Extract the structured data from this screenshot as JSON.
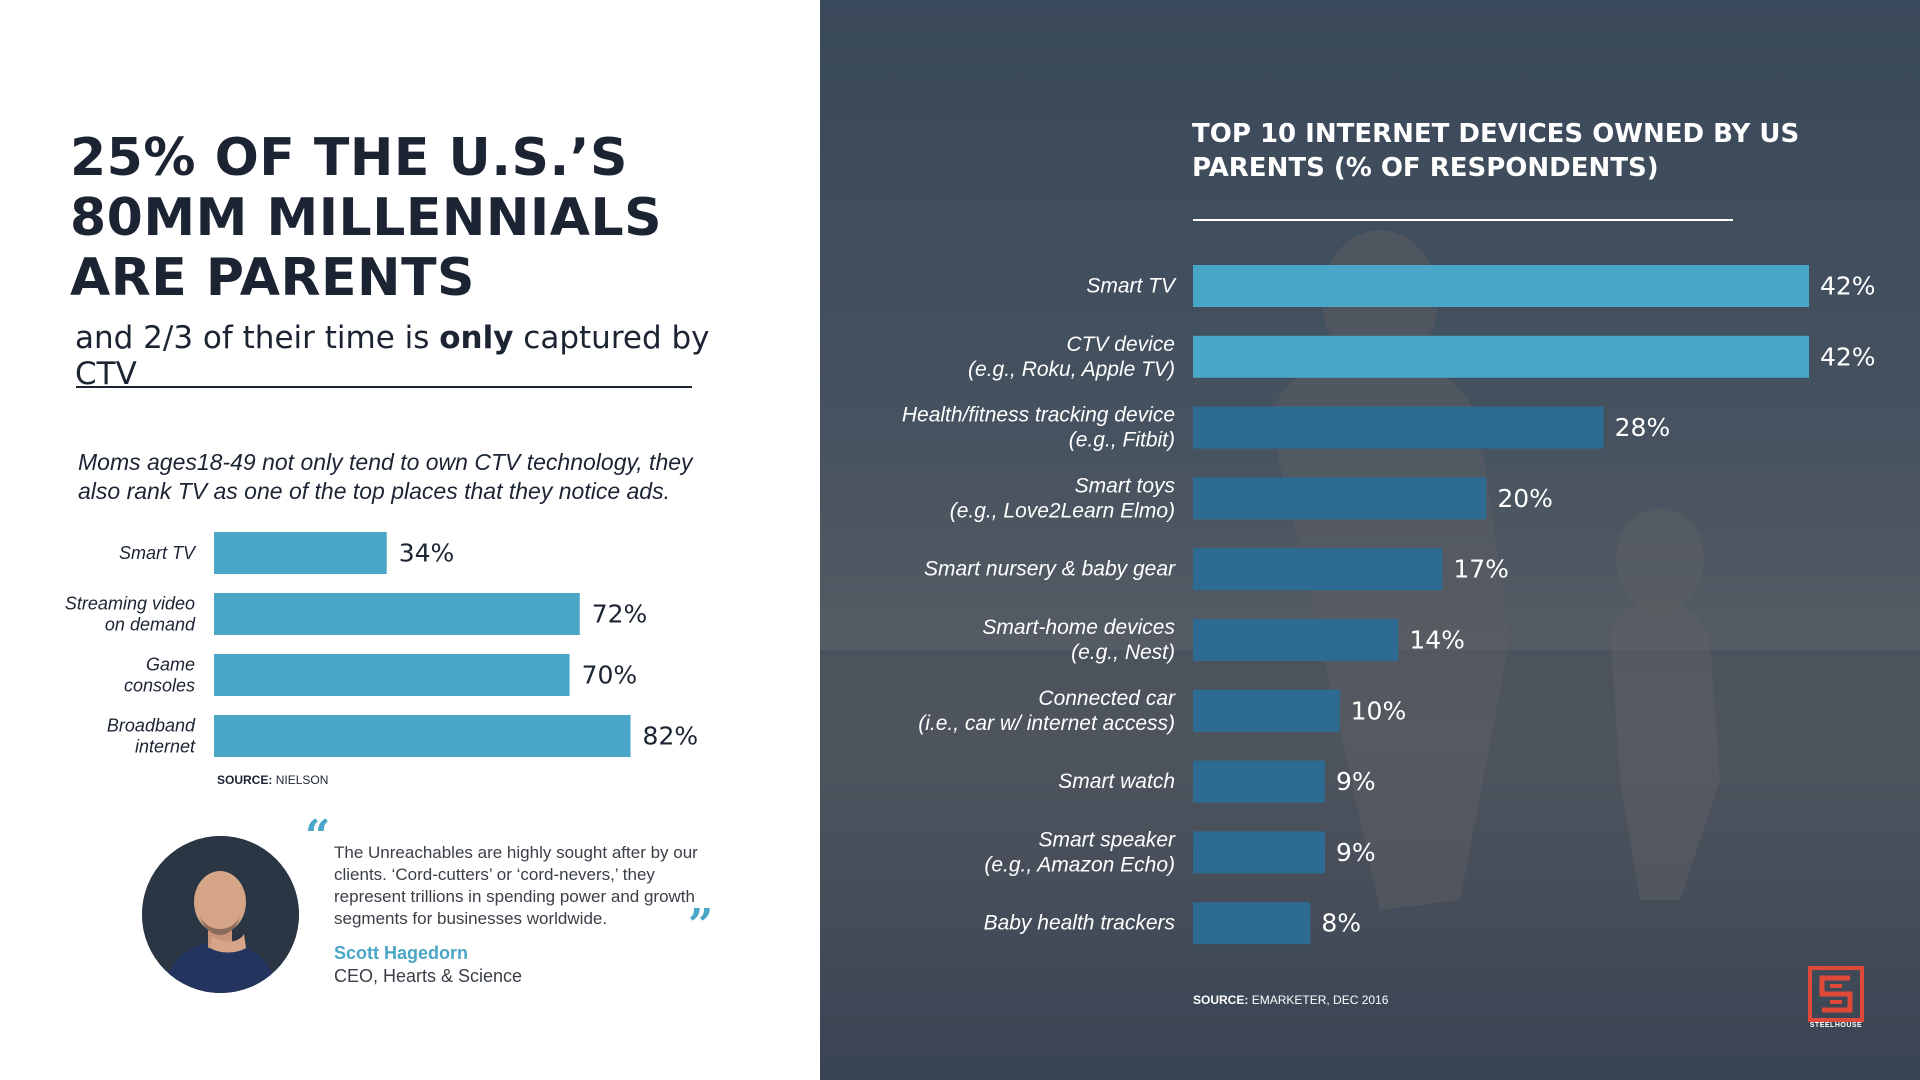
{
  "left": {
    "headline": [
      "25% OF THE U.S.’S",
      "80MM MILLENNIALS",
      "ARE PARENTS"
    ],
    "subhead": {
      "pre": "and 2/3 of their time is ",
      "bold": "only",
      "post": " captured by CTV"
    },
    "intro": "Moms ages18-49 not only tend to own CTV technology, they also rank TV as one of the top places that they notice ads.",
    "source_label": "SOURCE:",
    "source_value": "NIELSON",
    "quote": {
      "open_mark": "“",
      "close_mark": "”",
      "text": "The Unreachables are highly sought after by our clients. ‘Cord-cutters’ or ‘cord-nevers,’ they represent trillions in spending power and growth segments for businesses worldwide.",
      "author": "Scott Hagedorn",
      "title": "CEO, Hearts & Science"
    }
  },
  "right": {
    "title_line1": "TOP 10 INTERNET DEVICES OWNED BY US",
    "title_bold": "PARENTS",
    "title_rest": " (% OF RESPONDENTS)",
    "source_label": "SOURCE:",
    "source_value": "EMARKETER, DEC 2016",
    "logo_text": "STEELHOUSE"
  },
  "colors": {
    "bar_light": "#4aa6c6",
    "bar_dark": "#2e6b92",
    "text_dark": "#1c2433",
    "text_white": "#ffffff"
  },
  "chart_data": [
    {
      "type": "bar",
      "orientation": "horizontal",
      "title": "",
      "categories": [
        [
          "Smart TV"
        ],
        [
          "Streaming video",
          "on demand"
        ],
        [
          "Game",
          "consoles"
        ],
        [
          "Broadband",
          "internet"
        ]
      ],
      "values": [
        34,
        72,
        70,
        82
      ],
      "unit": "%",
      "xlim": [
        0,
        100
      ]
    },
    {
      "type": "bar",
      "orientation": "horizontal",
      "title": "TOP 10 INTERNET DEVICES OWNED BY US PARENTS (% OF RESPONDENTS)",
      "categories": [
        [
          "Smart TV"
        ],
        [
          "CTV device",
          "(e.g., Roku, Apple TV)"
        ],
        [
          "Health/fitness tracking device",
          "(e.g., Fitbit)"
        ],
        [
          "Smart toys",
          "(e.g., Love2Learn Elmo)"
        ],
        [
          "Smart nursery & baby gear"
        ],
        [
          "Smart-home devices",
          "(e.g., Nest)"
        ],
        [
          "Connected car",
          "(i.e., car w/ internet access)"
        ],
        [
          "Smart watch"
        ],
        [
          "Smart speaker",
          "(e.g., Amazon Echo)"
        ],
        [
          "Baby health trackers"
        ]
      ],
      "values": [
        42,
        42,
        28,
        20,
        17,
        14,
        10,
        9,
        9,
        8
      ],
      "unit": "%",
      "xlim": [
        0,
        42
      ],
      "highlight_top": 2
    }
  ]
}
